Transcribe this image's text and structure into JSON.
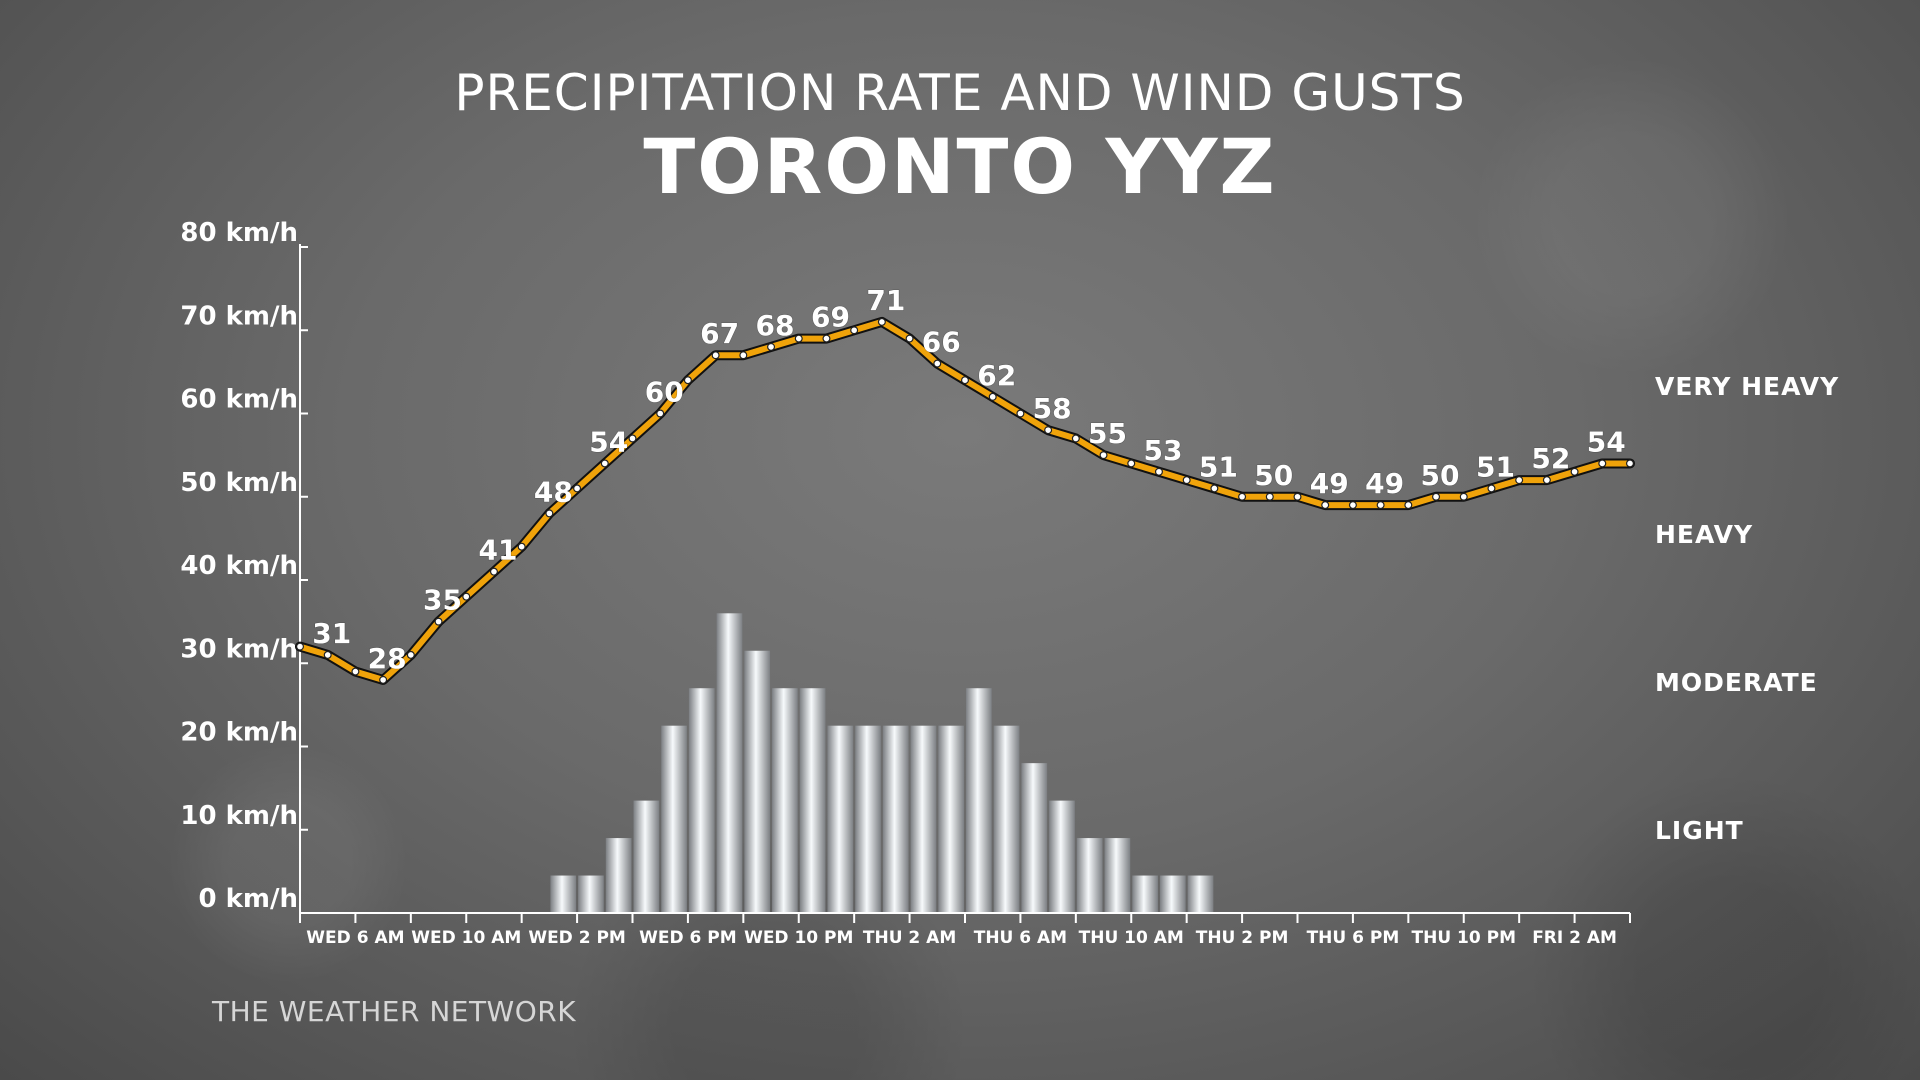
{
  "header": {
    "title": "PRECIPITATION RATE AND WIND GUSTS",
    "subtitle": "TORONTO YYZ"
  },
  "footer": {
    "brand": "THE WEATHER NETWORK"
  },
  "colors": {
    "line": "#f0a30a",
    "line_outline": "#111111",
    "text": "#ffffff",
    "axis": "#ffffff",
    "bars": "#e8edf2"
  },
  "chart_data": {
    "type": "line",
    "title": "PRECIPITATION RATE AND WIND GUSTS",
    "subtitle": "TORONTO YYZ",
    "ylim": [
      0,
      80
    ],
    "y_ticks": [
      "0 km/h",
      "10 km/h",
      "20 km/h",
      "30 km/h",
      "40 km/h",
      "50 km/h",
      "60 km/h",
      "70 km/h",
      "80 km/h"
    ],
    "x_tick_labels": [
      "WED 6 AM",
      "WED 10 AM",
      "WED 2 PM",
      "WED 6 PM",
      "WED 10 PM",
      "THU 2 AM",
      "THU 6 AM",
      "THU 10 AM",
      "THU 2 PM",
      "THU 6 PM",
      "THU 10 PM",
      "FRI 2 AM"
    ],
    "x_start": "WED 4 AM",
    "x_step_hours": 1,
    "grid": false,
    "precipitation_levels": [
      "VERY HEAVY",
      "HEAVY",
      "MODERATE",
      "LIGHT"
    ],
    "series": [
      {
        "name": "Wind gusts",
        "unit": "km/h",
        "values": [
          32,
          31,
          29,
          28,
          31,
          35,
          38,
          41,
          44,
          48,
          51,
          54,
          57,
          60,
          64,
          67,
          67,
          68,
          69,
          69,
          70,
          71,
          69,
          66,
          64,
          62,
          60,
          58,
          57,
          55,
          54,
          53,
          52,
          51,
          50,
          50,
          50,
          49,
          49,
          49,
          49,
          50,
          50,
          51,
          52,
          52,
          53,
          54,
          54
        ],
        "labels": [
          {
            "index": 1,
            "value": 31
          },
          {
            "index": 3,
            "value": 28
          },
          {
            "index": 5,
            "value": 35
          },
          {
            "index": 7,
            "value": 41
          },
          {
            "index": 9,
            "value": 48
          },
          {
            "index": 11,
            "value": 54
          },
          {
            "index": 13,
            "value": 60
          },
          {
            "index": 15,
            "value": 67
          },
          {
            "index": 17,
            "value": 68
          },
          {
            "index": 19,
            "value": 69
          },
          {
            "index": 21,
            "value": 71
          },
          {
            "index": 23,
            "value": 66
          },
          {
            "index": 25,
            "value": 62
          },
          {
            "index": 27,
            "value": 58
          },
          {
            "index": 29,
            "value": 55
          },
          {
            "index": 31,
            "value": 53
          },
          {
            "index": 33,
            "value": 51
          },
          {
            "index": 35,
            "value": 50
          },
          {
            "index": 37,
            "value": 49
          },
          {
            "index": 39,
            "value": 49
          },
          {
            "index": 41,
            "value": 50
          },
          {
            "index": 43,
            "value": 51
          },
          {
            "index": 45,
            "value": 52
          },
          {
            "index": 47,
            "value": 54
          }
        ]
      },
      {
        "name": "Precipitation rate",
        "type": "bar",
        "values": [
          0,
          0,
          0,
          0,
          0,
          0,
          0,
          0,
          0,
          4.5,
          4.5,
          9,
          13.5,
          22.5,
          27,
          36,
          31.5,
          27,
          27,
          22.5,
          22.5,
          22.5,
          22.5,
          22.5,
          27,
          22.5,
          18,
          13.5,
          9,
          9,
          4.5,
          4.5,
          4.5,
          0,
          0,
          0,
          0,
          0,
          0,
          0,
          0,
          0,
          0,
          0,
          0,
          0,
          0,
          0
        ]
      }
    ]
  }
}
